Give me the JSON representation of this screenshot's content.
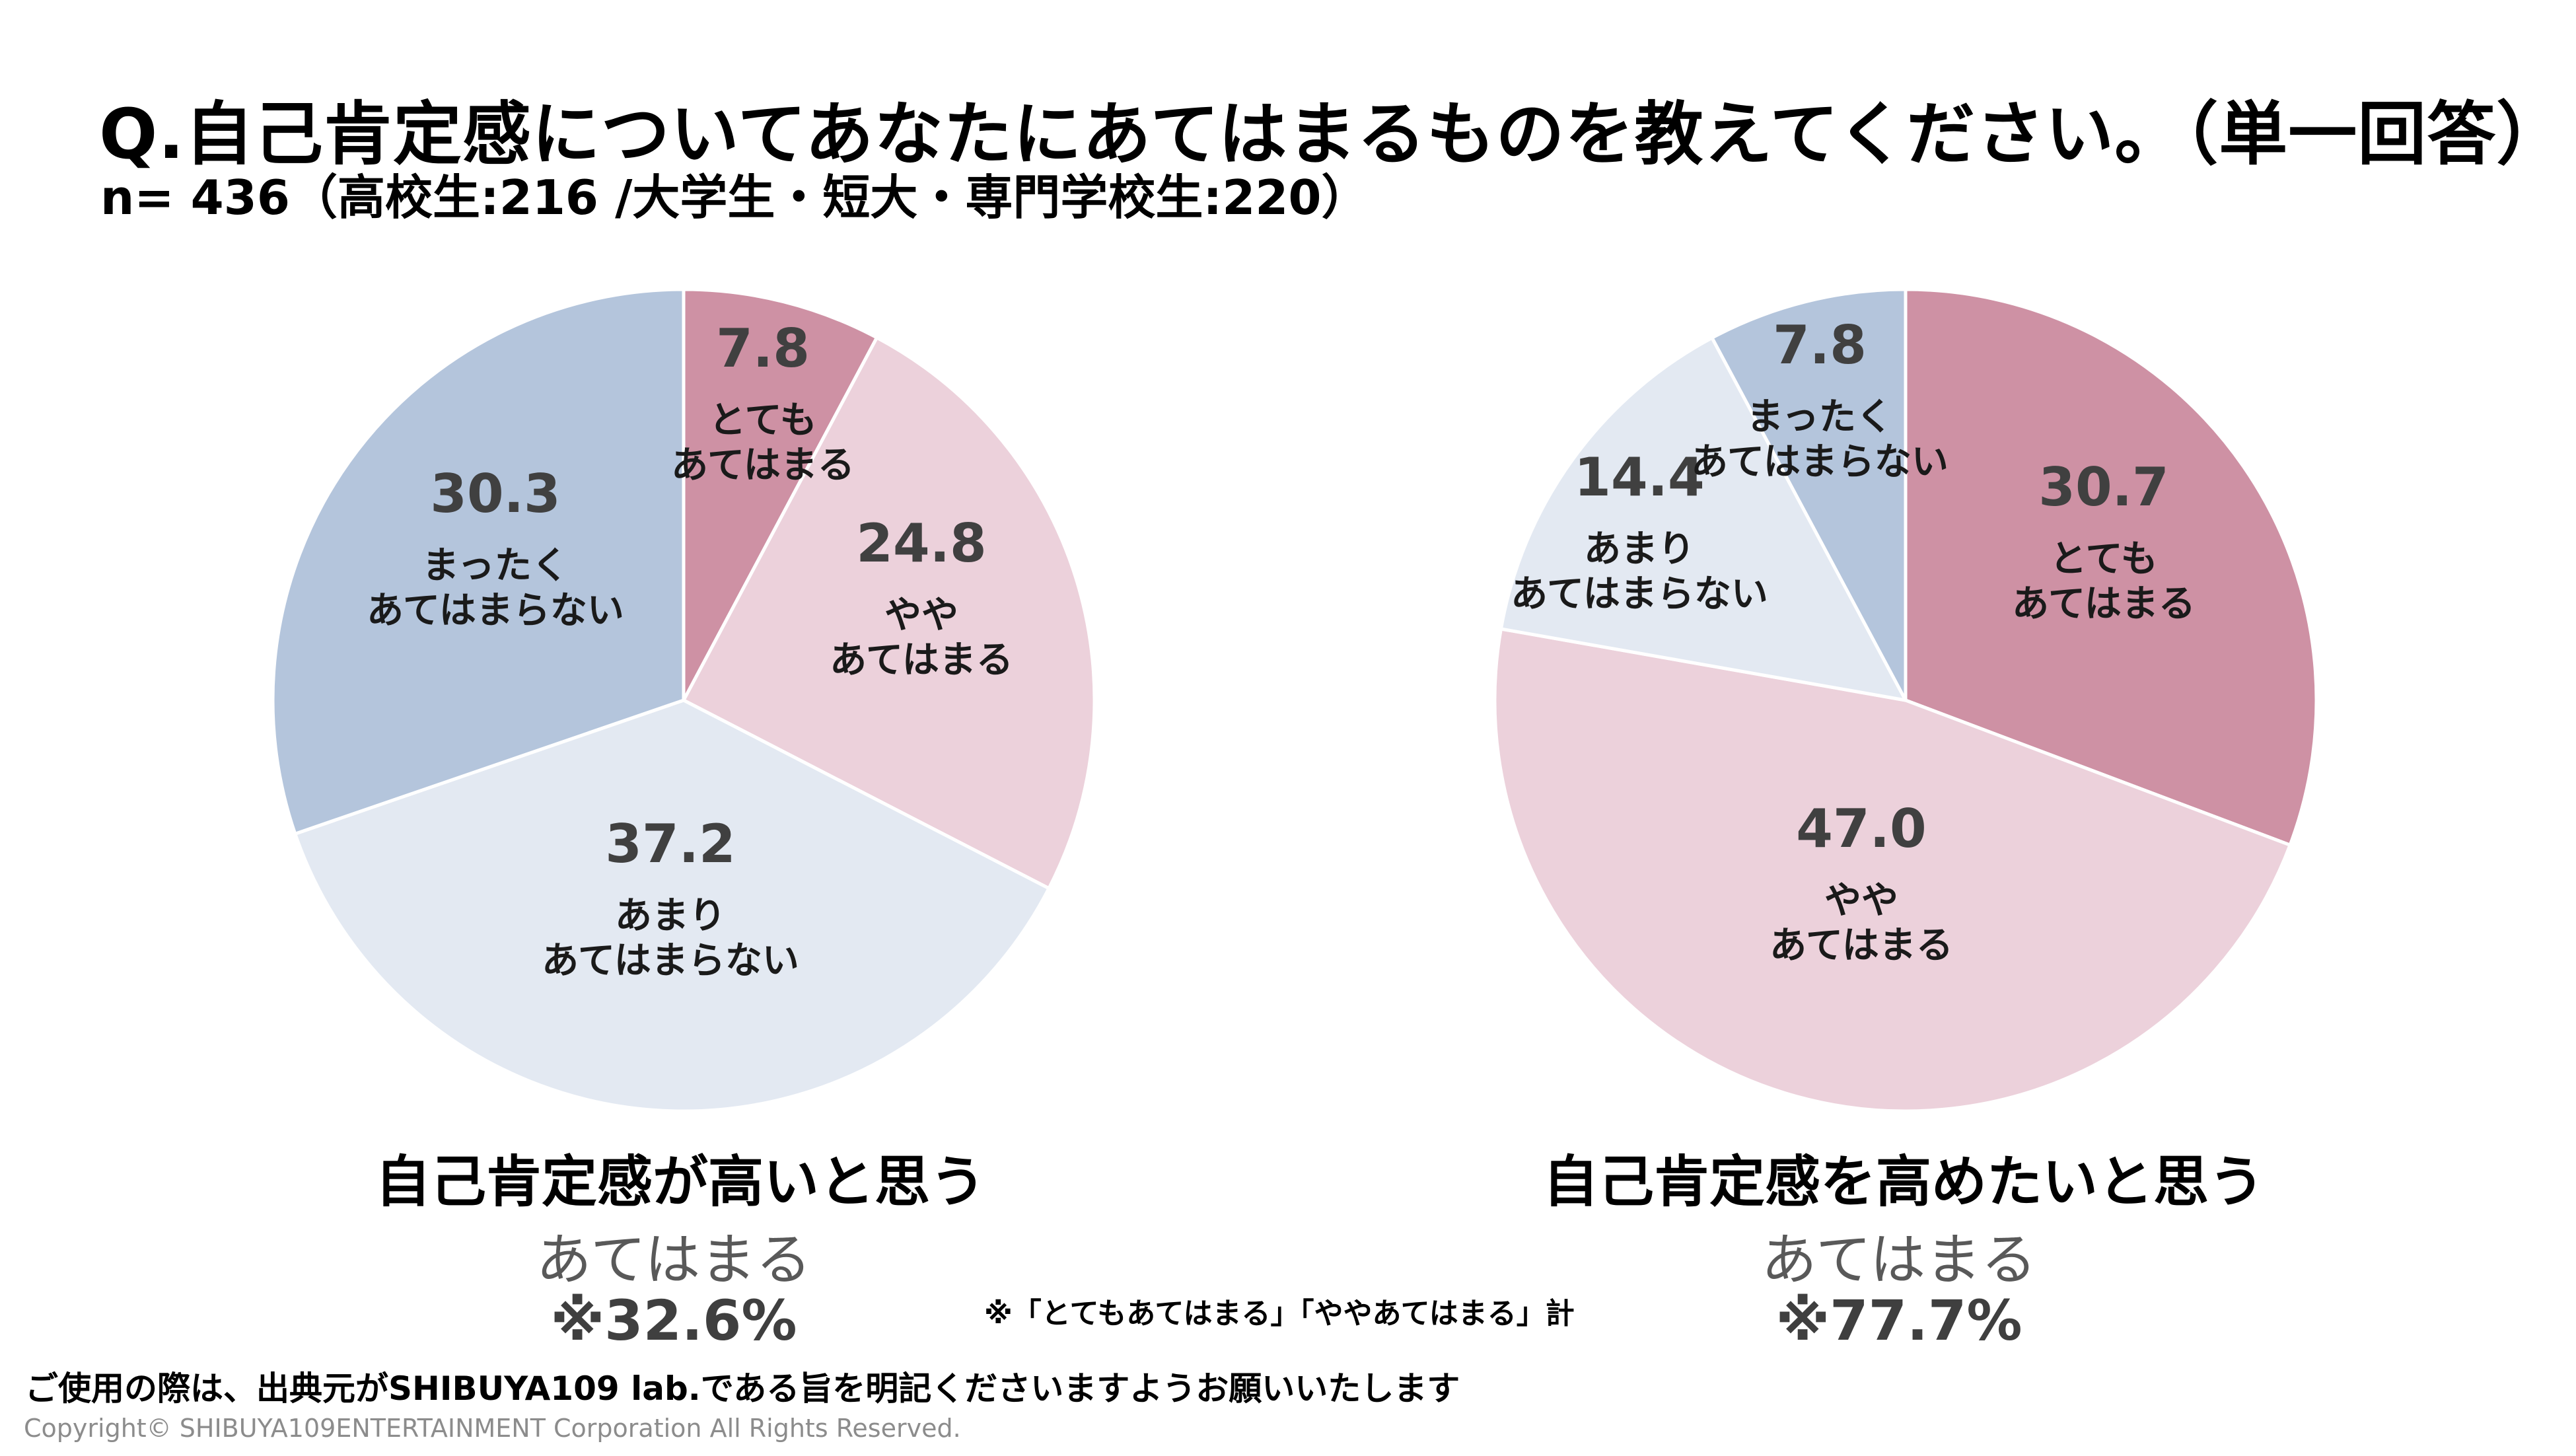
{
  "title": "Q.自己肯定感についてあなたにあてはまるものを教えてください。（単一回答）",
  "subtitle": "n= 436（高校生:216 /大学生・短大・専門学校生:220）",
  "chart_data": [
    {
      "type": "pie",
      "title": "自己肯定感が高いと思う",
      "unit": "%",
      "slices": [
        {
          "value": 7.8,
          "value_text": "7.8",
          "label_lines": [
            "とても",
            "あてはまる"
          ],
          "color": "#CE91A4"
        },
        {
          "value": 24.8,
          "value_text": "24.8",
          "label_lines": [
            "やや",
            "あてはまる"
          ],
          "color": "#ECD1DB"
        },
        {
          "value": 37.2,
          "value_text": "37.2",
          "label_lines": [
            "あまり",
            "あてはまらない"
          ],
          "color": "#E3E9F2"
        },
        {
          "value": 30.3,
          "value_text": "30.3",
          "label_lines": [
            "まったく",
            "あてはまらない"
          ],
          "color": "#B4C5DC"
        }
      ],
      "summary_label": "あてはまる",
      "summary_value": "※32.6%"
    },
    {
      "type": "pie",
      "title": "自己肯定感を高めたいと思う",
      "unit": "%",
      "slices": [
        {
          "value": 30.7,
          "value_text": "30.7",
          "label_lines": [
            "とても",
            "あてはまる"
          ],
          "color": "#CE91A4"
        },
        {
          "value": 47.0,
          "value_text": "47.0",
          "label_lines": [
            "やや",
            "あてはまる"
          ],
          "color": "#ECD1DB"
        },
        {
          "value": 14.4,
          "value_text": "14.4",
          "label_lines": [
            "あまり",
            "あてはまらない"
          ],
          "color": "#E3E9F2"
        },
        {
          "value": 7.8,
          "value_text": "7.8",
          "label_lines": [
            "まったく",
            "あてはまらない"
          ],
          "color": "#B4C5DC"
        }
      ],
      "summary_label": "あてはまる",
      "summary_value": "※77.7%"
    }
  ],
  "note": "※「とてもあてはまる」「ややあてはまる」計",
  "usage_notice": "ご使用の際は、出典元がSHIBUYA109 lab.である旨を明記くださいますようお願いいたします",
  "copyright": "Copyright© SHIBUYA109ENTERTAINMENT Corporation All Rights Reserved."
}
